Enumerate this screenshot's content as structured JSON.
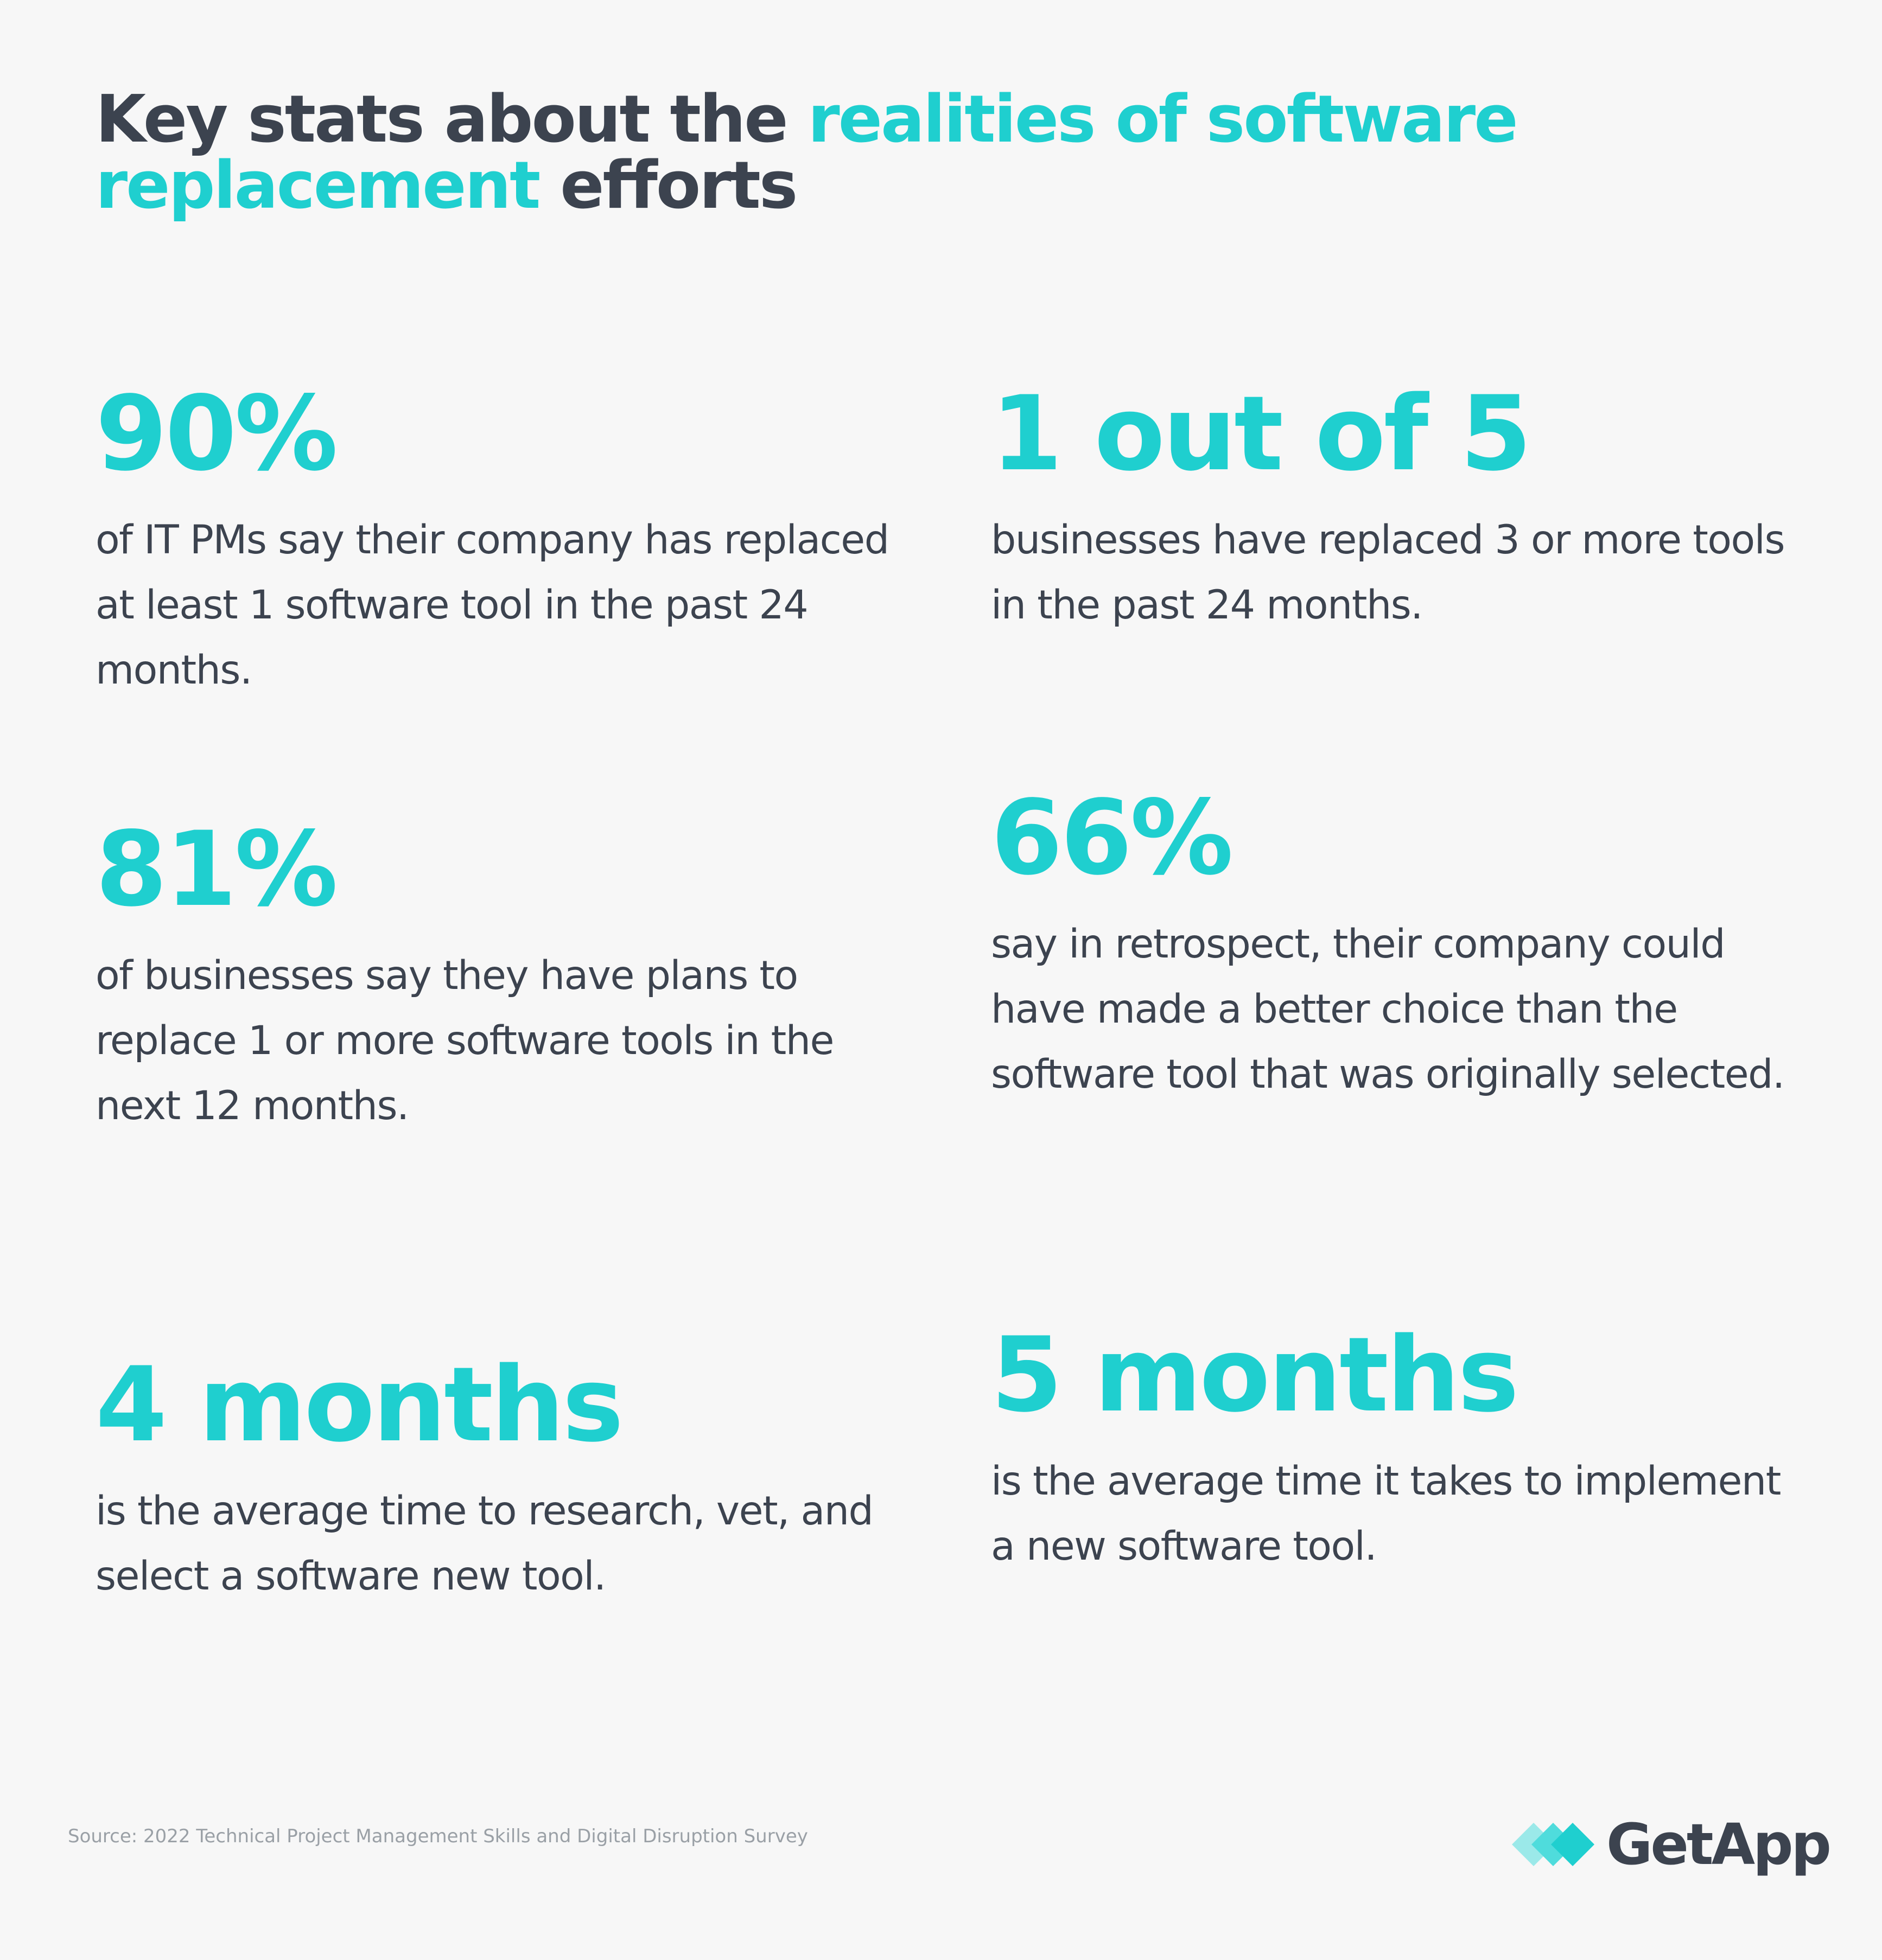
{
  "title": {
    "part1": "Key stats about the ",
    "accent": "realities of software replacement",
    "part2": " efforts"
  },
  "stats": [
    {
      "value": "90%",
      "description": "of IT PMs say their company has replaced at least 1 software tool in the past 24 months."
    },
    {
      "value": "1 out of 5",
      "description": "businesses have replaced 3 or more tools in the past 24 months."
    },
    {
      "value": "81%",
      "description": "of businesses say they have plans to replace 1 or more software tools in the next 12 months."
    },
    {
      "value": "66%",
      "description": "say in retrospect, their company could have made a better choice than the software tool that was originally selected."
    },
    {
      "value": "4 months",
      "description": "is the average time to research, vet, and select a software new tool."
    },
    {
      "value": "5 months",
      "description": "is the average time it takes to implement a new software tool."
    }
  ],
  "source": "Source: 2022 Technical Project Management Skills and Digital Disruption Survey",
  "logo": {
    "text": "GetApp",
    "icon": "getapp-logo-icon"
  },
  "colors": {
    "background": "#f7f7f7",
    "accent": "#1fcfcf",
    "text": "#3c434f",
    "muted": "#9aa0a6"
  }
}
